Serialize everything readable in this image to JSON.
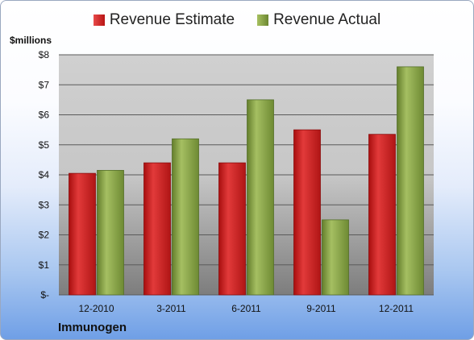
{
  "chart_data": {
    "type": "bar",
    "title": "",
    "ylabel": "$millions",
    "xlabel": "",
    "company": "Immunogen",
    "categories": [
      "12-2010",
      "3-2011",
      "6-2011",
      "9-2011",
      "12-2011"
    ],
    "series": [
      {
        "name": "Revenue Estimate",
        "color": "#cc1f1f",
        "values": [
          4.05,
          4.4,
          4.4,
          5.5,
          5.35
        ]
      },
      {
        "name": "Revenue Actual",
        "color": "#7f9b3e",
        "values": [
          4.15,
          5.2,
          6.5,
          2.5,
          7.6
        ]
      }
    ],
    "ylim": [
      0,
      8
    ],
    "yticks": [
      {
        "value": 0,
        "label": "$-"
      },
      {
        "value": 1,
        "label": "$1"
      },
      {
        "value": 2,
        "label": "$2"
      },
      {
        "value": 3,
        "label": "$3"
      },
      {
        "value": 4,
        "label": "$4"
      },
      {
        "value": 5,
        "label": "$5"
      },
      {
        "value": 6,
        "label": "$6"
      },
      {
        "value": 7,
        "label": "$7"
      },
      {
        "value": 8,
        "label": "$8"
      }
    ],
    "grid": true,
    "legend_position": "top"
  }
}
